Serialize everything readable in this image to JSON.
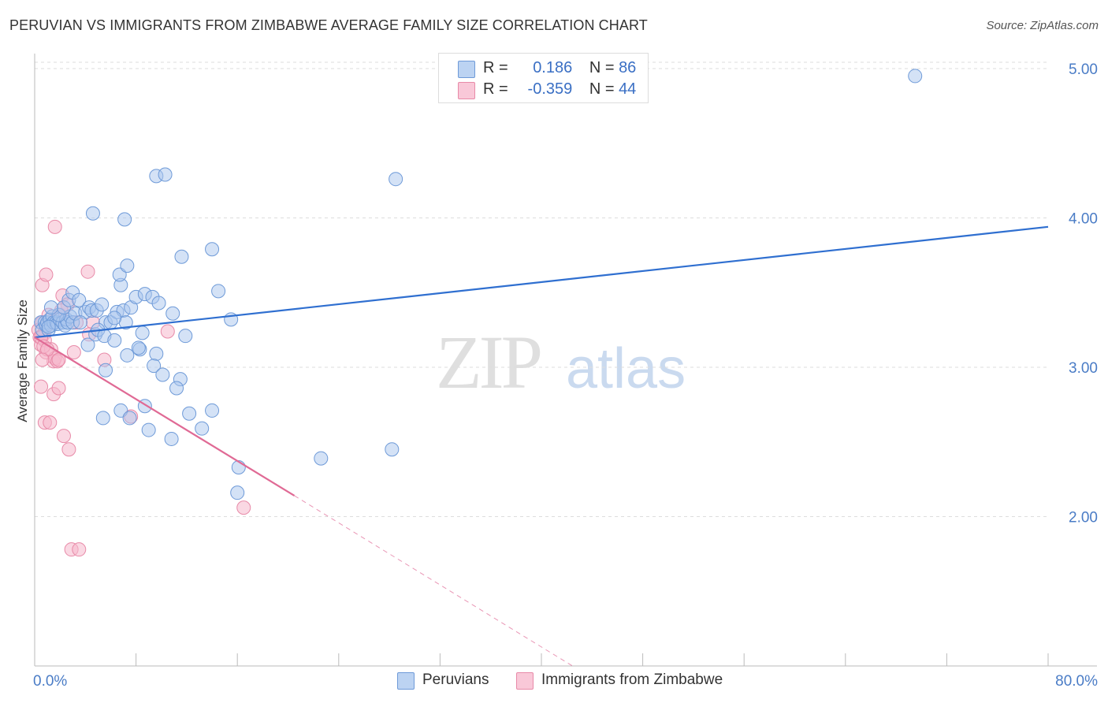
{
  "header": {
    "title": "PERUVIAN VS IMMIGRANTS FROM ZIMBABWE AVERAGE FAMILY SIZE CORRELATION CHART",
    "source": "Source: ZipAtlas.com"
  },
  "legend_stats": [
    {
      "r_label": "R =",
      "r_value": "0.186",
      "n_label": "N =",
      "n_value": "86"
    },
    {
      "r_label": "R =",
      "r_value": "-0.359",
      "n_label": "N =",
      "n_value": "44"
    }
  ],
  "watermark": {
    "zip": "ZIP",
    "atlas": "atlas"
  },
  "colors": {
    "peruvians_fill": "#a9c6ee",
    "peruvians_stroke": "#6e9ad8",
    "peruvians_line": "#2f6fd0",
    "zimbabwe_fill": "#f6b8cc",
    "zimbabwe_stroke": "#e88aa8",
    "zimbabwe_line": "#e06a95",
    "tick": "#4a7cc6",
    "grid": "#dddddd"
  },
  "chart_data": {
    "type": "scatter",
    "title": "PERUVIAN VS IMMIGRANTS FROM ZIMBABWE AVERAGE FAMILY SIZE CORRELATION CHART",
    "xlabel": "",
    "ylabel": "Average Family Size",
    "xlim": [
      0,
      80
    ],
    "ylim": [
      1.0,
      5.1
    ],
    "x_tick_labels": [
      {
        "value": 0,
        "label": "0.0%"
      },
      {
        "value": 80,
        "label": "80.0%"
      }
    ],
    "y_ticks": [
      2.0,
      3.0,
      4.0,
      5.0
    ],
    "y_tick_labels": [
      "2.00",
      "3.00",
      "4.00",
      "5.00"
    ],
    "legend_position": "top-center",
    "series": [
      {
        "name": "Peruvians",
        "r": 0.186,
        "n": 86,
        "trend": {
          "x": [
            0,
            80
          ],
          "y": [
            3.2,
            3.94
          ],
          "style": "solid"
        },
        "points": [
          [
            0.5,
            3.3
          ],
          [
            0.6,
            3.25
          ],
          [
            0.8,
            3.3
          ],
          [
            0.9,
            3.28
          ],
          [
            1.0,
            3.3
          ],
          [
            1.1,
            3.25
          ],
          [
            1.2,
            3.32
          ],
          [
            1.3,
            3.28
          ],
          [
            1.4,
            3.34
          ],
          [
            1.5,
            3.3
          ],
          [
            1.7,
            3.3
          ],
          [
            1.8,
            3.29
          ],
          [
            2.0,
            3.32
          ],
          [
            2.2,
            3.3
          ],
          [
            2.4,
            3.28
          ],
          [
            2.5,
            3.32
          ],
          [
            2.6,
            3.3
          ],
          [
            2.8,
            3.34
          ],
          [
            3.0,
            3.3
          ],
          [
            3.2,
            3.36
          ],
          [
            1.9,
            3.35
          ],
          [
            2.3,
            3.4
          ],
          [
            2.7,
            3.45
          ],
          [
            3.0,
            3.5
          ],
          [
            3.5,
            3.45
          ],
          [
            4.0,
            3.37
          ],
          [
            4.3,
            3.4
          ],
          [
            4.5,
            3.38
          ],
          [
            4.9,
            3.38
          ],
          [
            5.3,
            3.42
          ],
          [
            5.6,
            3.3
          ],
          [
            6.0,
            3.3
          ],
          [
            6.5,
            3.37
          ],
          [
            7.0,
            3.38
          ],
          [
            7.6,
            3.4
          ],
          [
            8.0,
            3.47
          ],
          [
            8.7,
            3.49
          ],
          [
            9.3,
            3.47
          ],
          [
            9.8,
            3.43
          ],
          [
            10.9,
            3.36
          ],
          [
            3.6,
            3.3
          ],
          [
            4.2,
            3.15
          ],
          [
            4.8,
            3.22
          ],
          [
            5.0,
            3.25
          ],
          [
            5.5,
            3.21
          ],
          [
            6.3,
            3.18
          ],
          [
            7.2,
            3.3
          ],
          [
            8.3,
            3.12
          ],
          [
            8.2,
            3.13
          ],
          [
            8.5,
            3.23
          ],
          [
            7.3,
            3.08
          ],
          [
            9.6,
            3.09
          ],
          [
            9.4,
            3.01
          ],
          [
            10.1,
            2.95
          ],
          [
            11.9,
            3.21
          ],
          [
            11.5,
            2.92
          ],
          [
            11.2,
            2.86
          ],
          [
            12.2,
            2.69
          ],
          [
            14.0,
            2.71
          ],
          [
            5.6,
            2.98
          ],
          [
            6.8,
            2.71
          ],
          [
            7.5,
            2.66
          ],
          [
            8.7,
            2.74
          ],
          [
            9.0,
            2.58
          ],
          [
            10.8,
            2.52
          ],
          [
            13.2,
            2.59
          ],
          [
            16.1,
            2.33
          ],
          [
            16.0,
            2.16
          ],
          [
            5.4,
            2.66
          ],
          [
            22.6,
            2.39
          ],
          [
            28.2,
            2.45
          ],
          [
            6.8,
            3.55
          ],
          [
            6.7,
            3.62
          ],
          [
            7.3,
            3.68
          ],
          [
            11.6,
            3.74
          ],
          [
            14.0,
            3.79
          ],
          [
            14.5,
            3.51
          ],
          [
            15.5,
            3.32
          ],
          [
            4.6,
            4.03
          ],
          [
            7.1,
            3.99
          ],
          [
            9.6,
            4.28
          ],
          [
            10.3,
            4.29
          ],
          [
            28.5,
            4.26
          ],
          [
            69.5,
            4.95
          ],
          [
            1.3,
            3.4
          ],
          [
            6.3,
            3.33
          ],
          [
            1.1,
            3.27
          ]
        ]
      },
      {
        "name": "Immigrants from Zimbabwe",
        "r": -0.359,
        "n": 44,
        "trend": {
          "x": [
            0,
            20.5
          ],
          "y": [
            3.2,
            2.14
          ],
          "style": "solid"
        },
        "trend_extension": {
          "x": [
            20.5,
            80
          ],
          "y": [
            2.14,
            -0.95
          ],
          "style": "dashed"
        },
        "points": [
          [
            0.3,
            3.25
          ],
          [
            0.4,
            3.2
          ],
          [
            0.5,
            3.15
          ],
          [
            0.6,
            3.3
          ],
          [
            0.7,
            3.22
          ],
          [
            0.8,
            3.18
          ],
          [
            0.9,
            3.1
          ],
          [
            1.0,
            3.28
          ],
          [
            1.1,
            3.35
          ],
          [
            1.2,
            3.3
          ],
          [
            1.3,
            3.12
          ],
          [
            1.5,
            3.04
          ],
          [
            1.6,
            3.06
          ],
          [
            1.8,
            3.04
          ],
          [
            1.9,
            3.05
          ],
          [
            2.0,
            3.35
          ],
          [
            2.2,
            3.48
          ],
          [
            2.6,
            3.42
          ],
          [
            3.1,
            3.1
          ],
          [
            4.6,
            3.3
          ],
          [
            4.3,
            3.22
          ],
          [
            5.5,
            3.05
          ],
          [
            10.5,
            3.24
          ],
          [
            0.6,
            3.55
          ],
          [
            0.9,
            3.62
          ],
          [
            1.6,
            3.94
          ],
          [
            4.2,
            3.64
          ],
          [
            0.5,
            2.87
          ],
          [
            1.5,
            2.82
          ],
          [
            1.9,
            2.86
          ],
          [
            0.8,
            2.63
          ],
          [
            1.2,
            2.63
          ],
          [
            2.3,
            2.54
          ],
          [
            2.7,
            2.45
          ],
          [
            7.6,
            2.67
          ],
          [
            16.5,
            2.06
          ],
          [
            2.9,
            1.78
          ],
          [
            3.5,
            1.78
          ],
          [
            0.5,
            3.2
          ],
          [
            0.7,
            3.14
          ],
          [
            1.0,
            3.12
          ],
          [
            2.1,
            3.38
          ],
          [
            3.3,
            3.3
          ],
          [
            0.6,
            3.05
          ]
        ]
      }
    ]
  },
  "bottom_legend": [
    {
      "label": "Peruvians"
    },
    {
      "label": "Immigrants from Zimbabwe"
    }
  ]
}
